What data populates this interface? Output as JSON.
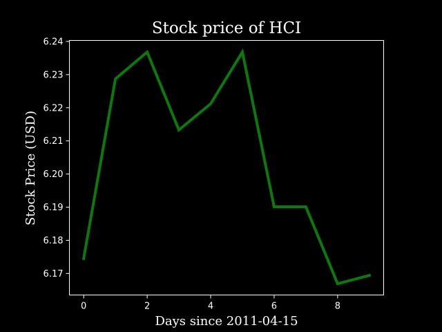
{
  "chart_data": {
    "type": "line",
    "title": "Stock price of HCI",
    "xlabel": "Days since 2011-04-15",
    "ylabel": "Stock Price (USD)",
    "xlim": [
      -0.45,
      9.45
    ],
    "ylim": [
      6.1635,
      6.2403
    ],
    "xticks": [
      0,
      2,
      4,
      6,
      8
    ],
    "yticks": [
      6.17,
      6.18,
      6.19,
      6.2,
      6.21,
      6.22,
      6.23,
      6.24
    ],
    "ytick_labels": [
      "6.17",
      "6.18",
      "6.19",
      "6.20",
      "6.21",
      "6.22",
      "6.23",
      "6.24"
    ],
    "grid": false,
    "line_color": "#0b7a0b",
    "axes_color": "#ffffff",
    "background_color": "#000000",
    "series": [
      {
        "x": [
          0,
          1,
          2,
          3,
          4,
          5,
          6,
          7,
          8,
          9
        ],
        "values": [
          6.1745,
          6.2287,
          6.2368,
          6.2133,
          6.2212,
          6.2368,
          6.1901,
          6.1901,
          6.1669,
          6.1694
        ]
      }
    ]
  }
}
